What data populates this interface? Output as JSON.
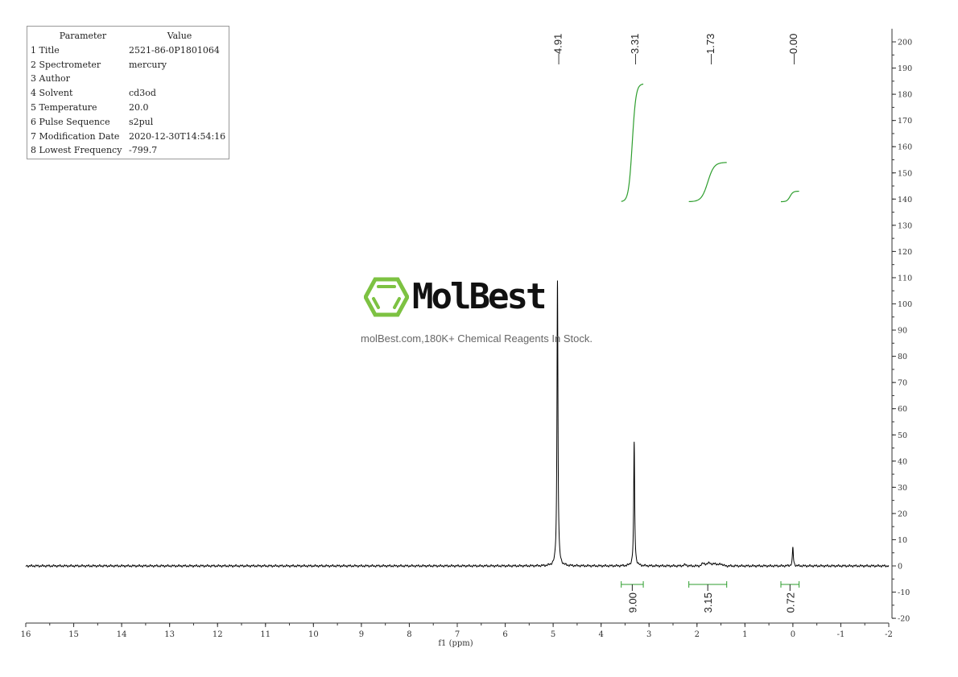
{
  "parameters": {
    "header": {
      "key": "Parameter",
      "value": "Value"
    },
    "rows": [
      {
        "key": "1 Title",
        "value": "2521-86-0P1801064"
      },
      {
        "key": "2 Spectrometer",
        "value": "mercury"
      },
      {
        "key": "3 Author",
        "value": ""
      },
      {
        "key": "4 Solvent",
        "value": "cd3od"
      },
      {
        "key": "5 Temperature",
        "value": "20.0"
      },
      {
        "key": "6 Pulse Sequence",
        "value": "s2pul"
      },
      {
        "key": "7 Modification Date",
        "value": "2020-12-30T14:54:16"
      },
      {
        "key": "8 Lowest Frequency",
        "value": "-799.7"
      }
    ]
  },
  "watermark": {
    "brand": "MolBest",
    "tagline": "molBest.com,180K+ Chemical Reagents In Stock.",
    "color": "#7dc242"
  },
  "chart_data": {
    "type": "line",
    "xlabel": "f1 (ppm)",
    "xlim": [
      16,
      -2
    ],
    "ylim": [
      -20,
      205
    ],
    "x_ticks": [
      16,
      15,
      14,
      13,
      12,
      11,
      10,
      9,
      8,
      7,
      6,
      5,
      4,
      3,
      2,
      1,
      0,
      -1,
      -2
    ],
    "y_ticks": [
      200,
      190,
      180,
      170,
      160,
      150,
      140,
      130,
      120,
      110,
      100,
      90,
      80,
      70,
      60,
      50,
      40,
      30,
      20,
      10,
      0,
      -10,
      -20
    ],
    "spectrum_color": "#000000",
    "integral_color": "#2e9e2e",
    "peaks": [
      {
        "ppm": 4.91,
        "height": 109,
        "label": "4.91"
      },
      {
        "ppm": 3.31,
        "height": 47,
        "label": "3.31"
      },
      {
        "ppm": 0.0,
        "height": 7,
        "label": "0.00"
      },
      {
        "ppm": 1.73,
        "height": 1.2,
        "label": "1.73"
      }
    ],
    "integrals": [
      {
        "from": 3.58,
        "to": 3.12,
        "value": "9.00",
        "curve_start": 139,
        "curve_end": 184
      },
      {
        "from": 2.17,
        "to": 1.38,
        "value": "3.15",
        "curve_start": 139,
        "curve_end": 154
      },
      {
        "from": 0.25,
        "to": -0.13,
        "value": "0.72",
        "curve_start": 139,
        "curve_end": 143
      }
    ]
  }
}
